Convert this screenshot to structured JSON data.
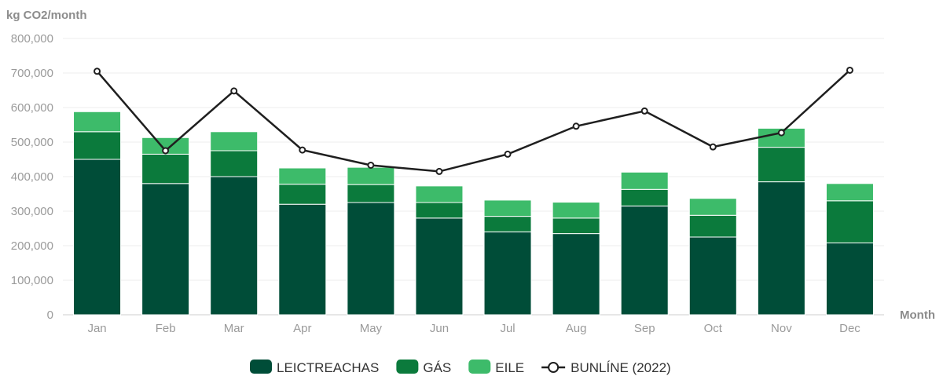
{
  "chart_data": {
    "type": "bar",
    "stacked": true,
    "ylabel": "kg CO2/month",
    "xlabel": "Month",
    "ylim": [
      0,
      800000
    ],
    "yticks": [
      "0",
      "100,000",
      "200,000",
      "300,000",
      "400,000",
      "500,000",
      "600,000",
      "700,000",
      "800,000"
    ],
    "ytick_values": [
      0,
      100000,
      200000,
      300000,
      400000,
      500000,
      600000,
      700000,
      800000
    ],
    "grid": true,
    "legend_position": "bottom-center",
    "categories": [
      "Jan",
      "Feb",
      "Mar",
      "Apr",
      "May",
      "Jun",
      "Jul",
      "Aug",
      "Sep",
      "Oct",
      "Nov",
      "Dec"
    ],
    "series": [
      {
        "name": "LEICTREACHAS",
        "type": "bar",
        "color": "#004d38",
        "values": [
          450000,
          380000,
          400000,
          320000,
          325000,
          280000,
          240000,
          235000,
          315000,
          225000,
          385000,
          208000
        ]
      },
      {
        "name": "GÁS",
        "type": "bar",
        "color": "#0b7a3c",
        "values": [
          80000,
          85000,
          75000,
          58000,
          52000,
          45000,
          45000,
          45000,
          48000,
          63000,
          100000,
          122000
        ]
      },
      {
        "name": "EILE",
        "type": "bar",
        "color": "#3dbb6a",
        "values": [
          58000,
          48000,
          55000,
          47000,
          50000,
          48000,
          47000,
          46000,
          50000,
          49000,
          55000,
          50000
        ]
      },
      {
        "name": "BUNLÍNE (2022)",
        "type": "line",
        "color": "#1f1f1f",
        "values": [
          705000,
          475000,
          648000,
          477000,
          433000,
          415000,
          465000,
          546000,
          590000,
          486000,
          527000,
          708000
        ]
      }
    ]
  }
}
